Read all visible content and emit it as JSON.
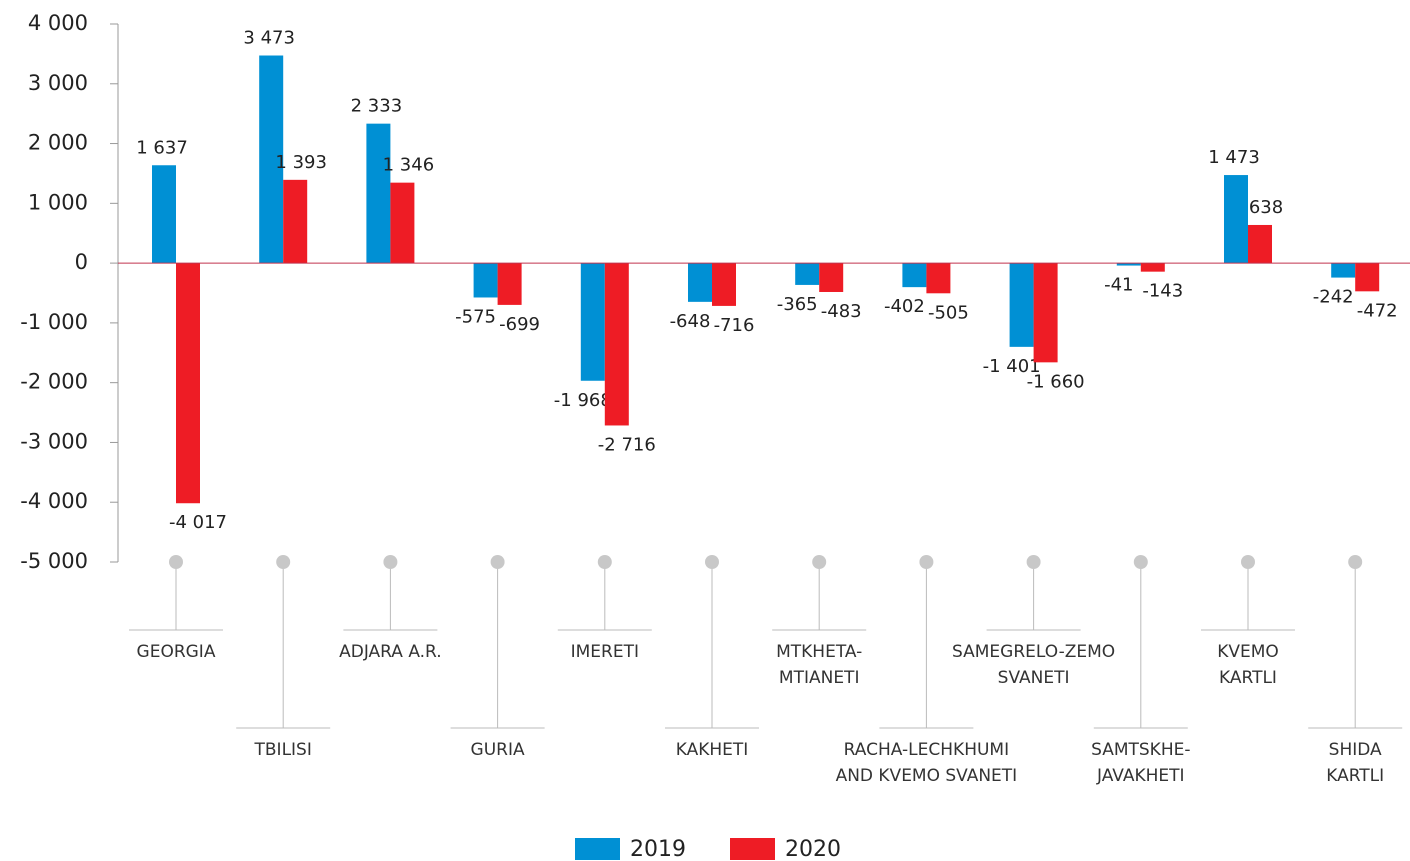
{
  "chart_data": {
    "type": "bar",
    "categories": [
      "GEORGIA",
      "TBILISI",
      "ADJARA A.R.",
      "GURIA",
      "IMERETI",
      "KAKHETI",
      "MTKHETA-\nMTIANETI",
      "RACHA-LECHKHUMI\nAND KVEMO SVANETI",
      "SAMEGRELO-ZEMO\nSVANETI",
      "SAMTSKHE-\nJAVAKHETI",
      "KVEMO\nKARTLI",
      "SHIDA\nKARTLI"
    ],
    "series": [
      {
        "name": "2019",
        "color": "#0090d4",
        "values": [
          1637,
          3473,
          2333,
          -575,
          -1968,
          -648,
          -365,
          -402,
          -1401,
          -41,
          1473,
          -242
        ],
        "value_labels": [
          "1 637",
          "3 473",
          "2 333",
          "-575",
          "-1 968",
          "-648",
          "-365",
          "-402",
          "-1 401",
          "-41",
          "1 473",
          "-242"
        ]
      },
      {
        "name": "2020",
        "color": "#ee1c25",
        "values": [
          -4017,
          1393,
          1346,
          -699,
          -2716,
          -716,
          -483,
          -505,
          -1660,
          -143,
          638,
          -472
        ],
        "value_labels": [
          "-4 017",
          "1 393",
          "1 346",
          "-699",
          "-2 716",
          "-716",
          "-483",
          "-505",
          "-1 660",
          "-143",
          "638",
          "-472"
        ]
      }
    ],
    "ylim": [
      -5000,
      4000
    ],
    "yticks": [
      {
        "value": -5000,
        "label": "-5 000"
      },
      {
        "value": -4000,
        "label": "-4 000"
      },
      {
        "value": -3000,
        "label": "-3 000"
      },
      {
        "value": -2000,
        "label": "-2 000"
      },
      {
        "value": -1000,
        "label": "-1 000"
      },
      0,
      {
        "value": 1000,
        "label": "1 000"
      },
      {
        "value": 2000,
        "label": "2 000"
      },
      {
        "value": 3000,
        "label": "3 000"
      },
      {
        "value": 4000,
        "label": "4 000"
      }
    ],
    "grid": false,
    "legend": "bottom"
  }
}
